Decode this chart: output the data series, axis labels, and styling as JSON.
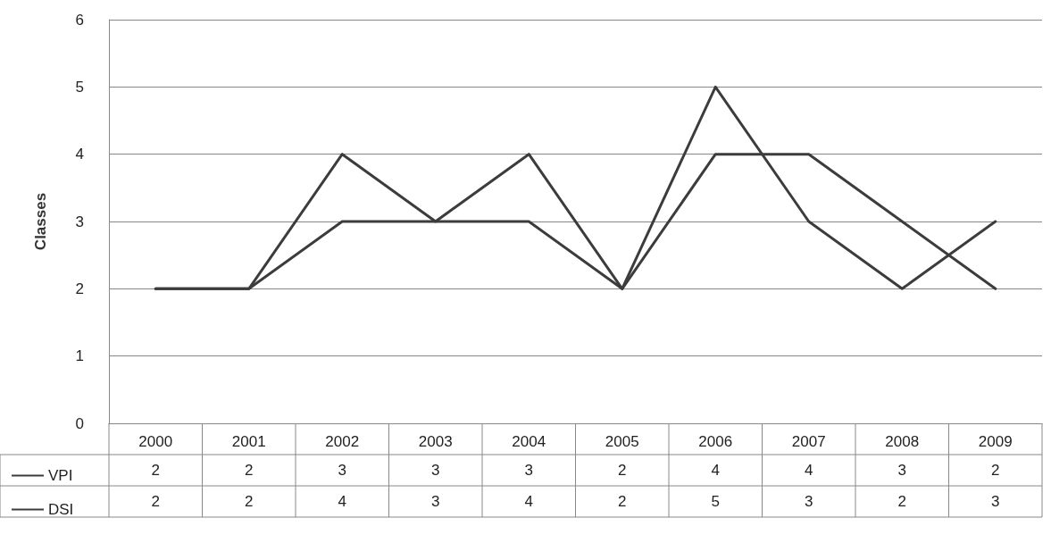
{
  "chart_data": {
    "type": "line",
    "ylabel": "Classes",
    "categories": [
      "2000",
      "2001",
      "2002",
      "2003",
      "2004",
      "2005",
      "2006",
      "2007",
      "2008",
      "2009"
    ],
    "series": [
      {
        "name": "VPI",
        "color": "#3c3c3c",
        "values": [
          2,
          2,
          3,
          3,
          3,
          2,
          4,
          4,
          3,
          2
        ]
      },
      {
        "name": "DSI",
        "color": "#3c3c3c",
        "values": [
          2,
          2,
          4,
          3,
          4,
          2,
          5,
          3,
          2,
          3
        ]
      }
    ],
    "ylim": [
      0,
      6
    ],
    "yticks": [
      0,
      1,
      2,
      3,
      4,
      5,
      6
    ],
    "grid": true,
    "legend": "bottom left",
    "data_labels": true,
    "marker": "none",
    "line_style": "solid"
  }
}
